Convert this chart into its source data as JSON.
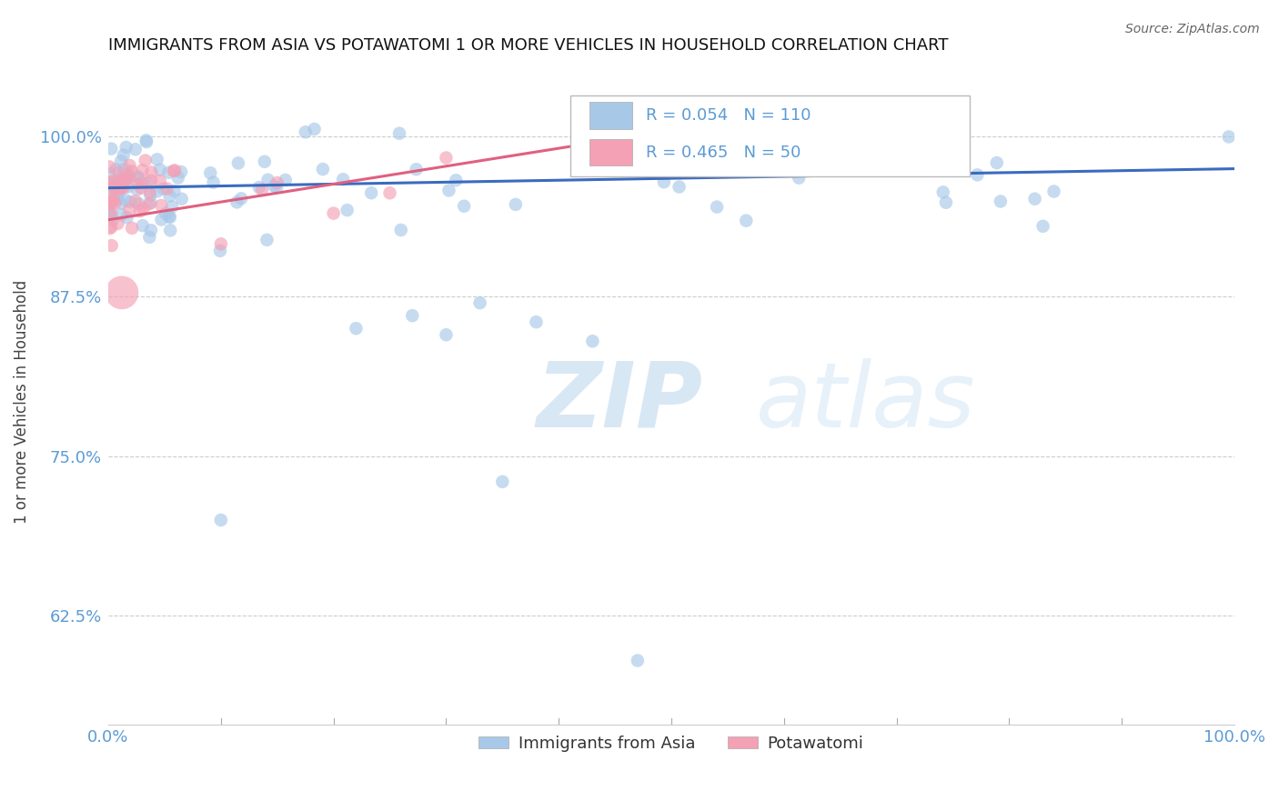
{
  "title": "IMMIGRANTS FROM ASIA VS POTAWATOMI 1 OR MORE VEHICLES IN HOUSEHOLD CORRELATION CHART",
  "source": "Source: ZipAtlas.com",
  "ylabel": "1 or more Vehicles in Household",
  "xlim": [
    0.0,
    1.0
  ],
  "ylim": [
    0.54,
    1.045
  ],
  "yticks": [
    0.625,
    0.75,
    0.875,
    1.0
  ],
  "ytick_labels": [
    "62.5%",
    "75.0%",
    "87.5%",
    "100.0%"
  ],
  "xticks": [
    0.0,
    0.25,
    0.5,
    0.75,
    1.0
  ],
  "xtick_labels": [
    "0.0%",
    "",
    "",
    "",
    "100.0%"
  ],
  "blue_color": "#a8c8e8",
  "pink_color": "#f4a0b5",
  "line_blue": "#3a6bbf",
  "line_pink": "#e06080",
  "r_blue": 0.054,
  "n_blue": 110,
  "r_pink": 0.465,
  "n_pink": 50,
  "watermark_zip": "ZIP",
  "watermark_atlas": "atlas",
  "title_color": "#111111",
  "axis_color": "#5b9bd5",
  "grid_color": "#cccccc",
  "legend_text_color": "#111111"
}
